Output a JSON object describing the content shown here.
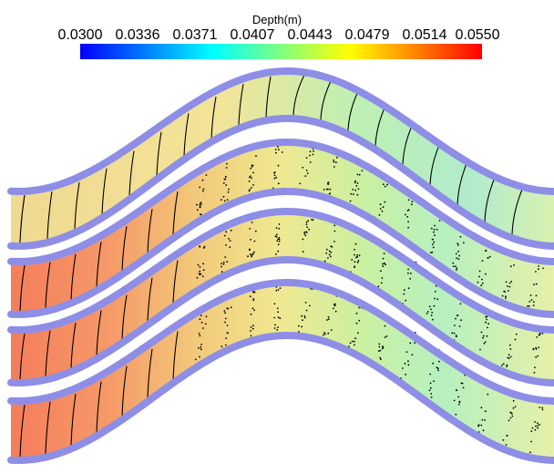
{
  "colorbar": {
    "title": "Depth(m)",
    "ticks": [
      "0.0300",
      "0.0336",
      "0.0371",
      "0.0407",
      "0.0443",
      "0.0479",
      "0.0514",
      "0.0550"
    ],
    "range": [
      0.03,
      0.055
    ],
    "colormap": [
      "#0000ff",
      "#00ffff",
      "#80ff80",
      "#ffff00",
      "#ff0000"
    ]
  },
  "scene": {
    "channel_count": 4,
    "wall_color": "#8e8ee6",
    "streamline_color": "#000000"
  }
}
